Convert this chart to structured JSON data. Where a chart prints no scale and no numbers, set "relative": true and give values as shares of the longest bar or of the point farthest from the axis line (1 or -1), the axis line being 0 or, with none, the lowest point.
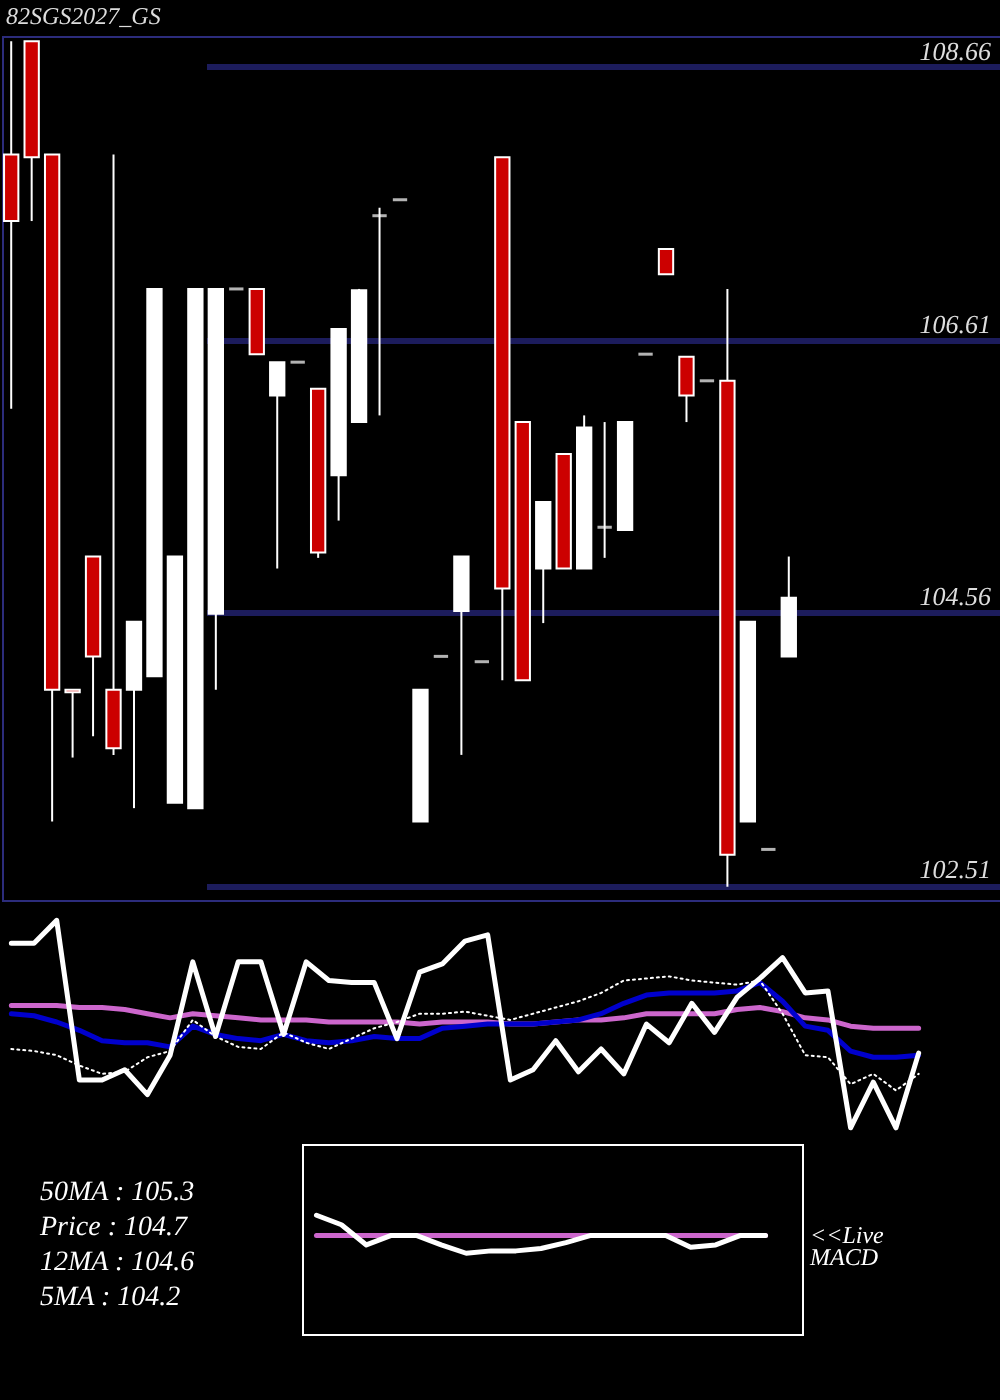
{
  "chart_data": [
    {
      "type": "candlestick",
      "title": "82SGS2027_GS",
      "categories": [
        null,
        null,
        null,
        null,
        null,
        null,
        null,
        null,
        null,
        null,
        null,
        null,
        null,
        null,
        null,
        null,
        null,
        null,
        null,
        null,
        null,
        null,
        null,
        null,
        null,
        null,
        null,
        null,
        null,
        null,
        null,
        null,
        null,
        null,
        null,
        null,
        null,
        null,
        null
      ],
      "ohlc": [
        [
          108.0,
          108.85,
          106.09,
          107.5
        ],
        [
          108.85,
          108.85,
          107.5,
          107.98
        ],
        [
          108.0,
          108.0,
          102.99,
          103.98
        ],
        [
          103.98,
          103.98,
          103.47,
          103.96
        ],
        [
          104.98,
          104.98,
          103.63,
          104.23
        ],
        [
          103.98,
          108.0,
          103.49,
          103.54
        ],
        [
          103.98,
          104.49,
          103.09,
          104.49
        ],
        [
          104.08,
          106.99,
          104.08,
          106.99
        ],
        [
          103.13,
          104.98,
          103.13,
          104.98
        ],
        [
          103.09,
          106.99,
          103.09,
          106.99
        ],
        [
          104.55,
          106.99,
          103.98,
          106.99
        ],
        [
          106.99,
          106.99,
          106.99,
          106.99
        ],
        [
          106.99,
          106.99,
          106.5,
          106.5
        ],
        [
          106.19,
          106.44,
          104.89,
          106.44
        ],
        [
          106.44,
          106.44,
          106.44,
          106.44
        ],
        [
          106.24,
          106.24,
          104.97,
          105.01
        ],
        [
          105.59,
          106.69,
          105.25,
          106.69
        ],
        [
          105.99,
          106.99,
          105.99,
          106.98
        ],
        [
          107.54,
          107.6,
          106.04,
          107.54
        ],
        [
          107.66,
          107.66,
          107.66,
          107.66
        ],
        [
          102.99,
          103.98,
          102.99,
          103.98
        ],
        [
          104.23,
          104.23,
          104.23,
          104.23
        ],
        [
          104.57,
          104.98,
          103.49,
          104.98
        ],
        [
          104.19,
          104.19,
          104.19,
          104.19
        ],
        [
          107.98,
          107.98,
          104.05,
          104.74
        ],
        [
          105.99,
          105.99,
          104.05,
          104.05
        ],
        [
          104.89,
          105.39,
          104.48,
          105.39
        ],
        [
          105.75,
          105.75,
          104.89,
          104.89
        ],
        [
          104.89,
          106.04,
          104.89,
          105.95
        ],
        [
          105.2,
          105.99,
          104.97,
          105.2
        ],
        [
          105.18,
          105.99,
          105.18,
          105.99
        ],
        [
          106.5,
          106.5,
          106.5,
          106.5
        ],
        [
          107.29,
          107.29,
          107.1,
          107.1
        ],
        [
          106.48,
          106.48,
          105.99,
          106.19
        ],
        [
          106.3,
          106.3,
          106.3,
          106.3
        ],
        [
          106.3,
          106.99,
          102.5,
          102.74
        ],
        [
          102.99,
          104.49,
          102.99,
          104.49
        ],
        [
          102.78,
          102.78,
          102.78,
          102.78
        ],
        [
          104.23,
          104.98,
          104.23,
          104.67
        ]
      ],
      "colors": [
        "#cc0000",
        "#cc0000",
        "#cc0000",
        "#cc0000",
        "#cc0000",
        "#cc0000",
        "#ffffff",
        "#ffffff",
        "#ffffff",
        "#ffffff",
        "#ffffff",
        "#ffffff",
        "#cc0000",
        "#ffffff",
        "#ffffff",
        "#cc0000",
        "#ffffff",
        "#ffffff",
        "#ffffff",
        "#ffffff",
        "#ffffff",
        "#ffffff",
        "#ffffff",
        "#ffffff",
        "#cc0000",
        "#cc0000",
        "#ffffff",
        "#cc0000",
        "#ffffff",
        "#ffffff",
        "#ffffff",
        "#ffffff",
        "#cc0000",
        "#cc0000",
        "#ffffff",
        "#cc0000",
        "#ffffff",
        "#ffffff",
        "#ffffff"
      ],
      "ylim": [
        102.4,
        108.89
      ],
      "yticks": [
        102.51,
        104.56,
        106.61,
        108.66
      ],
      "grid": "y",
      "tick_labels": "y"
    },
    {
      "type": "line",
      "relative": true,
      "categories": [
        null,
        null,
        null,
        null,
        null,
        null,
        null,
        null,
        null,
        null,
        null,
        null,
        null,
        null,
        null,
        null,
        null,
        null,
        null,
        null,
        null,
        null,
        null,
        null,
        null,
        null,
        null,
        null,
        null,
        null,
        null,
        null,
        null,
        null,
        null,
        null,
        null,
        null,
        null,
        null,
        null
      ],
      "series": [
        {
          "color": "#cc66cc",
          "values": [
            0.59,
            0.59,
            0.59,
            0.58,
            0.58,
            0.57,
            0.55,
            0.53,
            0.55,
            0.54,
            0.53,
            0.52,
            0.52,
            0.52,
            0.51,
            0.51,
            0.51,
            0.51,
            0.5,
            0.51,
            0.51,
            0.51,
            0.5,
            0.5,
            0.51,
            0.52,
            0.52,
            0.53,
            0.55,
            0.55,
            0.55,
            0.55,
            0.57,
            0.58,
            0.56,
            0.53,
            0.52,
            0.49,
            0.48,
            0.48,
            0.48
          ]
        },
        {
          "color": "#0000cc",
          "values": [
            0.55,
            0.54,
            0.51,
            0.47,
            0.42,
            0.41,
            0.41,
            0.39,
            0.49,
            0.45,
            0.43,
            0.42,
            0.45,
            0.42,
            0.41,
            0.42,
            0.44,
            0.43,
            0.43,
            0.48,
            0.49,
            0.5,
            0.5,
            0.5,
            0.51,
            0.52,
            0.55,
            0.6,
            0.64,
            0.65,
            0.65,
            0.65,
            0.66,
            0.7,
            0.61,
            0.49,
            0.47,
            0.37,
            0.34,
            0.34,
            0.35
          ]
        },
        {
          "color": "#ffffff",
          "line_style": "dotted",
          "values": [
            0.38,
            0.37,
            0.35,
            0.3,
            0.26,
            0.27,
            0.34,
            0.37,
            0.52,
            0.44,
            0.39,
            0.38,
            0.46,
            0.41,
            0.38,
            0.43,
            0.48,
            0.51,
            0.55,
            0.55,
            0.56,
            0.54,
            0.52,
            0.55,
            0.58,
            0.61,
            0.65,
            0.71,
            0.72,
            0.73,
            0.71,
            0.7,
            0.69,
            0.71,
            0.55,
            0.35,
            0.34,
            0.21,
            0.26,
            0.18,
            0.26
          ]
        },
        {
          "color": "#ffffff",
          "values": [
            0.89,
            0.89,
            1,
            0.23,
            0.23,
            0.28,
            0.16,
            0.35,
            0.8,
            0.44,
            0.8,
            0.8,
            0.45,
            0.8,
            0.71,
            0.7,
            0.7,
            0.43,
            0.75,
            0.79,
            0.9,
            0.93,
            0.23,
            0.28,
            0.42,
            0.27,
            0.38,
            0.26,
            0.5,
            0.41,
            0.6,
            0.46,
            0.63,
            0.72,
            0.82,
            0.65,
            0.66,
            0,
            0.22,
            0,
            0.36
          ]
        }
      ]
    },
    {
      "type": "line",
      "relative": true,
      "categories": [
        null,
        null,
        null,
        null,
        null,
        null,
        null,
        null,
        null,
        null,
        null,
        null,
        null,
        null,
        null,
        null,
        null,
        null,
        null
      ],
      "series": [
        {
          "color": "#cc66cc",
          "values": [
            0.83,
            0.83,
            0.83,
            0.83,
            0.83,
            0.83,
            0.83,
            0.83,
            0.83,
            0.83,
            0.83,
            0.83,
            0.83,
            0.83,
            0.83,
            0.83,
            0.83,
            0.83,
            0.83
          ]
        },
        {
          "color": "#ffffff",
          "values": [
            1,
            0.92,
            0.75,
            0.83,
            0.83,
            0.75,
            0.68,
            0.7,
            0.7,
            0.72,
            0.77,
            0.83,
            0.83,
            0.83,
            0.83,
            0.73,
            0.75,
            0.83,
            0.83
          ]
        }
      ],
      "annotations": [
        "50MA : 105.3",
        "Price : 104.7",
        "12MA : 104.6",
        "5MA : 104.2",
        "<<Live",
        "MACD"
      ]
    }
  ]
}
